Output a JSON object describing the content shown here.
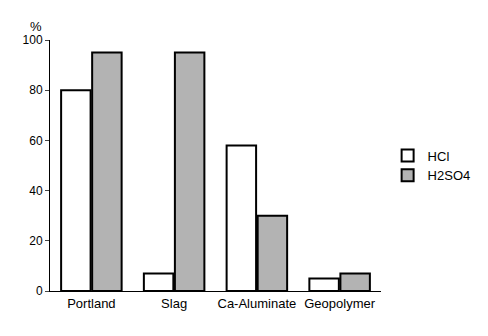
{
  "chart_data": {
    "type": "bar",
    "y_label": "%",
    "categories": [
      "Portland",
      "Slag",
      "Ca-Aluminate",
      "Geopolymer"
    ],
    "series": [
      {
        "name": "HCl",
        "color": "#ffffff",
        "values": [
          80,
          7,
          58,
          5
        ]
      },
      {
        "name": "H2SO4",
        "color": "#b3b3b3",
        "values": [
          95,
          95,
          30,
          7
        ]
      }
    ],
    "ylim": [
      0,
      100
    ],
    "yticks": [
      0,
      20,
      40,
      60,
      80,
      100
    ],
    "grid": false,
    "legend": "right"
  }
}
